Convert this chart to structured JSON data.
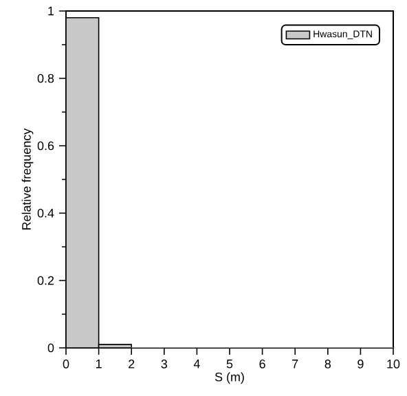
{
  "chart_data": {
    "type": "histogram",
    "xlabel": "S (m)",
    "ylabel": "Relative frequency",
    "bins": [
      0,
      1,
      2,
      3,
      4,
      5,
      6,
      7,
      8,
      9,
      10
    ],
    "series": [
      {
        "name": "Hwasun_DTN",
        "color": "#c8c8c8",
        "values": [
          0.98,
          0.01,
          0,
          0,
          0,
          0,
          0,
          0,
          0,
          0
        ]
      }
    ],
    "xlim": [
      0,
      10
    ],
    "xticks": [
      0,
      1,
      2,
      3,
      4,
      5,
      6,
      7,
      8,
      9,
      10
    ],
    "ylim": [
      0,
      1
    ],
    "yticks": [
      0,
      0.2,
      0.4,
      0.6,
      0.8,
      1
    ],
    "grid": false,
    "legend": "top right"
  }
}
